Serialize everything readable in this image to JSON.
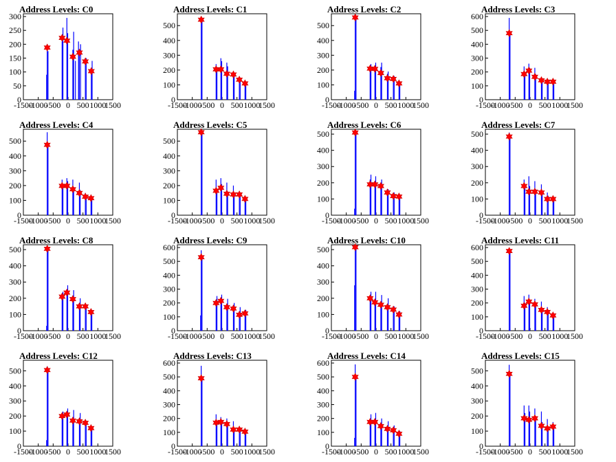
{
  "chart_data": [
    {
      "type": "bar",
      "title": "Address Levels: C0",
      "xlim": [
        -1500,
        1500
      ],
      "ylim": [
        0,
        310
      ],
      "yticks": [
        0,
        50,
        100,
        150,
        200,
        250,
        300
      ],
      "xticks": [
        -1500,
        -1000,
        -500,
        0,
        500,
        1000,
        1500
      ],
      "x": [
        -700,
        -700,
        -720,
        -200,
        -200,
        -40,
        -40,
        160,
        160,
        220,
        350,
        350,
        420,
        580,
        580,
        780,
        780
      ],
      "values": [
        200,
        175,
        90,
        260,
        210,
        240,
        295,
        245,
        180,
        140,
        210,
        180,
        200,
        150,
        140,
        140,
        110
      ],
      "markers": {
        "x": [
          -700,
          -200,
          -40,
          160,
          380,
          580,
          780
        ],
        "y": [
          188,
          223,
          213,
          155,
          170,
          138,
          103
        ]
      }
    },
    {
      "type": "bar",
      "title": "Address Levels: C1",
      "xlim": [
        -1500,
        1500
      ],
      "ylim": [
        0,
        580
      ],
      "yticks": [
        0,
        100,
        200,
        300,
        400,
        500
      ],
      "xticks": [
        -1500,
        -1000,
        -500,
        0,
        500,
        1000,
        1500
      ],
      "x": [
        -700,
        -700,
        -200,
        -200,
        -40,
        -40,
        160,
        160,
        380,
        380,
        580,
        580,
        770,
        770
      ],
      "values": [
        560,
        540,
        240,
        220,
        280,
        260,
        250,
        225,
        190,
        180,
        150,
        140,
        110,
        100
      ],
      "markers": {
        "x": [
          -700,
          -200,
          -40,
          160,
          380,
          580,
          770
        ],
        "y": [
          540,
          205,
          205,
          175,
          170,
          135,
          110
        ]
      }
    },
    {
      "type": "bar",
      "title": "Address Levels: C2",
      "xlim": [
        -1500,
        1500
      ],
      "ylim": [
        0,
        580
      ],
      "yticks": [
        0,
        100,
        200,
        300,
        400,
        500
      ],
      "xticks": [
        -1500,
        -1000,
        -500,
        0,
        500,
        1000,
        1500
      ],
      "x": [
        -700,
        -700,
        -720,
        -200,
        -200,
        -40,
        -40,
        160,
        160,
        380,
        380,
        580,
        580,
        770,
        770
      ],
      "values": [
        570,
        550,
        60,
        240,
        220,
        250,
        230,
        250,
        220,
        190,
        175,
        160,
        140,
        120,
        110
      ],
      "markers": {
        "x": [
          -700,
          -200,
          -40,
          160,
          380,
          580,
          770
        ],
        "y": [
          555,
          210,
          208,
          180,
          145,
          140,
          110
        ]
      }
    },
    {
      "type": "bar",
      "title": "Address Levels: C3",
      "xlim": [
        -1500,
        1500
      ],
      "ylim": [
        0,
        620
      ],
      "yticks": [
        0,
        100,
        200,
        300,
        400,
        500,
        600
      ],
      "xticks": [
        -1500,
        -1000,
        -500,
        0,
        500,
        1000,
        1500
      ],
      "x": [
        -700,
        -700,
        -200,
        -200,
        -40,
        -40,
        160,
        160,
        380,
        380,
        580,
        580,
        770,
        770
      ],
      "values": [
        590,
        480,
        240,
        200,
        260,
        230,
        230,
        185,
        150,
        140,
        145,
        130,
        140,
        120
      ],
      "markers": {
        "x": [
          -700,
          -200,
          -40,
          160,
          380,
          580,
          770
        ],
        "y": [
          480,
          185,
          210,
          165,
          140,
          130,
          130
        ]
      }
    },
    {
      "type": "bar",
      "title": "Address Levels: C4",
      "xlim": [
        -1500,
        1500
      ],
      "ylim": [
        0,
        580
      ],
      "yticks": [
        0,
        100,
        200,
        300,
        400,
        500
      ],
      "xticks": [
        -1500,
        -1000,
        -500,
        0,
        500,
        1000,
        1500
      ],
      "x": [
        -700,
        -700,
        -200,
        -200,
        -40,
        -40,
        160,
        160,
        380,
        380,
        580,
        580,
        770,
        770
      ],
      "values": [
        560,
        470,
        240,
        200,
        250,
        230,
        240,
        190,
        220,
        170,
        150,
        125,
        130,
        110
      ],
      "markers": {
        "x": [
          -700,
          -200,
          -40,
          160,
          380,
          580,
          770
        ],
        "y": [
          475,
          198,
          198,
          175,
          150,
          125,
          115
        ]
      }
    },
    {
      "type": "bar",
      "title": "Address Levels: C5",
      "xlim": [
        -1500,
        1500
      ],
      "ylim": [
        0,
        580
      ],
      "yticks": [
        0,
        100,
        200,
        300,
        400,
        500
      ],
      "xticks": [
        -1500,
        -1000,
        -500,
        0,
        500,
        1000,
        1500
      ],
      "x": [
        -700,
        -700,
        -200,
        -200,
        -40,
        -40,
        160,
        160,
        380,
        380,
        580,
        580,
        770,
        770
      ],
      "values": [
        560,
        550,
        240,
        180,
        250,
        210,
        220,
        160,
        200,
        150,
        150,
        140,
        120,
        110
      ],
      "markers": {
        "x": [
          -700,
          -200,
          -40,
          160,
          380,
          580,
          770
        ],
        "y": [
          560,
          165,
          185,
          145,
          140,
          140,
          110
        ]
      }
    },
    {
      "type": "bar",
      "title": "Address Levels: C6",
      "xlim": [
        -1500,
        1500
      ],
      "ylim": [
        0,
        530
      ],
      "yticks": [
        0,
        100,
        200,
        300,
        400,
        500
      ],
      "xticks": [
        -1500,
        -1000,
        -500,
        0,
        500,
        1000,
        1500
      ],
      "x": [
        -700,
        -700,
        -720,
        -200,
        -200,
        -40,
        -40,
        160,
        160,
        380,
        380,
        580,
        580,
        770,
        770
      ],
      "values": [
        520,
        510,
        40,
        250,
        220,
        240,
        200,
        220,
        180,
        160,
        140,
        140,
        120,
        120,
        110
      ],
      "markers": {
        "x": [
          -700,
          -200,
          -40,
          160,
          380,
          580,
          770
        ],
        "y": [
          510,
          190,
          190,
          180,
          140,
          118,
          115
        ]
      }
    },
    {
      "type": "bar",
      "title": "Address Levels: C7",
      "xlim": [
        -1500,
        1500
      ],
      "ylim": [
        0,
        530
      ],
      "yticks": [
        0,
        100,
        200,
        300,
        400,
        500
      ],
      "xticks": [
        -1500,
        -1000,
        -500,
        0,
        500,
        1000,
        1500
      ],
      "x": [
        -700,
        -700,
        -200,
        -200,
        -40,
        -40,
        160,
        160,
        380,
        380,
        580,
        580,
        770,
        770
      ],
      "values": [
        510,
        490,
        220,
        190,
        240,
        180,
        210,
        160,
        190,
        150,
        140,
        120,
        110,
        100
      ],
      "markers": {
        "x": [
          -700,
          -200,
          -40,
          160,
          380,
          580,
          770
        ],
        "y": [
          485,
          180,
          145,
          145,
          140,
          100,
          100
        ]
      }
    },
    {
      "type": "bar",
      "title": "Address Levels: C8",
      "xlim": [
        -1500,
        1500
      ],
      "ylim": [
        0,
        530
      ],
      "yticks": [
        0,
        100,
        200,
        300,
        400,
        500
      ],
      "xticks": [
        -1500,
        -1000,
        -500,
        0,
        500,
        1000,
        1500
      ],
      "x": [
        -700,
        -700,
        -720,
        -200,
        -200,
        -40,
        -40,
        160,
        160,
        380,
        380,
        580,
        580,
        770,
        770
      ],
      "values": [
        520,
        505,
        30,
        240,
        210,
        280,
        240,
        250,
        190,
        200,
        150,
        160,
        140,
        120,
        110
      ],
      "markers": {
        "x": [
          -700,
          -200,
          -40,
          160,
          380,
          580,
          770
        ],
        "y": [
          505,
          210,
          235,
          195,
          150,
          150,
          115
        ]
      }
    },
    {
      "type": "bar",
      "title": "Address Levels: C9",
      "xlim": [
        -1500,
        1500
      ],
      "ylim": [
        0,
        620
      ],
      "yticks": [
        0,
        100,
        200,
        300,
        400,
        500,
        600
      ],
      "xticks": [
        -1500,
        -1000,
        -500,
        0,
        500,
        1000,
        1500
      ],
      "x": [
        -700,
        -700,
        -720,
        -200,
        -200,
        -40,
        -40,
        160,
        160,
        380,
        380,
        580,
        580,
        770,
        770
      ],
      "values": [
        580,
        530,
        110,
        250,
        210,
        260,
        220,
        230,
        170,
        200,
        160,
        170,
        140,
        150,
        120
      ],
      "markers": {
        "x": [
          -700,
          -200,
          -40,
          160,
          380,
          580,
          770
        ],
        "y": [
          530,
          200,
          215,
          170,
          160,
          115,
          125
        ]
      }
    },
    {
      "type": "bar",
      "title": "Address Levels: C10",
      "xlim": [
        -1500,
        1500
      ],
      "ylim": [
        0,
        530
      ],
      "yticks": [
        0,
        100,
        200,
        300,
        400,
        500
      ],
      "xticks": [
        -1500,
        -1000,
        -500,
        0,
        500,
        1000,
        1500
      ],
      "x": [
        -700,
        -700,
        -720,
        -200,
        -200,
        -40,
        -40,
        160,
        160,
        380,
        380,
        580,
        580,
        770,
        770
      ],
      "values": [
        520,
        510,
        280,
        240,
        200,
        240,
        180,
        220,
        160,
        200,
        140,
        150,
        120,
        120,
        100
      ],
      "markers": {
        "x": [
          -700,
          -200,
          -40,
          160,
          380,
          580,
          770
        ],
        "y": [
          515,
          200,
          175,
          160,
          145,
          130,
          100
        ]
      }
    },
    {
      "type": "bar",
      "title": "Address Levels: C11",
      "xlim": [
        -1500,
        1500
      ],
      "ylim": [
        0,
        620
      ],
      "yticks": [
        0,
        100,
        200,
        300,
        400,
        500,
        600
      ],
      "xticks": [
        -1500,
        -1000,
        -500,
        0,
        500,
        1000,
        1500
      ],
      "x": [
        -700,
        -700,
        -200,
        -200,
        -40,
        -40,
        160,
        160,
        380,
        380,
        580,
        580,
        770,
        770
      ],
      "values": [
        590,
        570,
        250,
        200,
        260,
        220,
        230,
        180,
        210,
        150,
        170,
        140,
        130,
        110
      ],
      "markers": {
        "x": [
          -700,
          -200,
          -40,
          160,
          380,
          580,
          770
        ],
        "y": [
          575,
          180,
          210,
          190,
          150,
          135,
          110
        ]
      }
    },
    {
      "type": "bar",
      "title": "Address Levels: C12",
      "xlim": [
        -1500,
        1500
      ],
      "ylim": [
        0,
        570
      ],
      "yticks": [
        0,
        100,
        200,
        300,
        400,
        500
      ],
      "xticks": [
        -1500,
        -1000,
        -500,
        0,
        500,
        1000,
        1500
      ],
      "x": [
        -700,
        -700,
        -720,
        -200,
        -200,
        -40,
        -40,
        160,
        160,
        380,
        380,
        580,
        580,
        770,
        770
      ],
      "values": [
        530,
        505,
        40,
        230,
        200,
        250,
        210,
        240,
        180,
        220,
        170,
        160,
        140,
        130,
        110
      ],
      "markers": {
        "x": [
          -700,
          -200,
          -40,
          160,
          380,
          580,
          770
        ],
        "y": [
          505,
          200,
          210,
          170,
          165,
          155,
          120
        ]
      }
    },
    {
      "type": "bar",
      "title": "Address Levels: C13",
      "xlim": [
        -1500,
        1500
      ],
      "ylim": [
        0,
        620
      ],
      "yticks": [
        0,
        100,
        200,
        300,
        400,
        500,
        600
      ],
      "xticks": [
        -1500,
        -1000,
        -500,
        0,
        500,
        1000,
        1500
      ],
      "x": [
        -700,
        -700,
        -200,
        -200,
        -40,
        -40,
        160,
        160,
        380,
        380,
        580,
        580,
        770,
        770
      ],
      "values": [
        580,
        490,
        230,
        180,
        210,
        170,
        200,
        150,
        180,
        130,
        140,
        120,
        120,
        100
      ],
      "markers": {
        "x": [
          -700,
          -200,
          -40,
          160,
          380,
          580,
          770
        ],
        "y": [
          490,
          170,
          175,
          160,
          120,
          120,
          105
        ]
      }
    },
    {
      "type": "bar",
      "title": "Address Levels: C14",
      "xlim": [
        -1500,
        1500
      ],
      "ylim": [
        0,
        620
      ],
      "yticks": [
        0,
        100,
        200,
        300,
        400,
        500,
        600
      ],
      "xticks": [
        -1500,
        -1000,
        -500,
        0,
        500,
        1000,
        1500
      ],
      "x": [
        -700,
        -700,
        -720,
        -200,
        -200,
        -40,
        -40,
        160,
        160,
        380,
        380,
        580,
        580,
        770,
        770
      ],
      "values": [
        590,
        500,
        60,
        230,
        180,
        240,
        190,
        200,
        160,
        180,
        140,
        150,
        130,
        110,
        90
      ],
      "markers": {
        "x": [
          -700,
          -200,
          -40,
          160,
          380,
          580,
          770
        ],
        "y": [
          500,
          175,
          175,
          145,
          125,
          115,
          90
        ]
      }
    },
    {
      "type": "bar",
      "title": "Address Levels: C15",
      "xlim": [
        -1500,
        1500
      ],
      "ylim": [
        0,
        570
      ],
      "yticks": [
        0,
        100,
        200,
        300,
        400,
        500
      ],
      "xticks": [
        -1500,
        -1000,
        -500,
        0,
        500,
        1000,
        1500
      ],
      "x": [
        -700,
        -700,
        -200,
        -200,
        -40,
        -40,
        160,
        160,
        380,
        380,
        580,
        580,
        770,
        770
      ],
      "values": [
        540,
        480,
        270,
        220,
        270,
        230,
        250,
        200,
        230,
        160,
        180,
        130,
        160,
        140
      ],
      "markers": {
        "x": [
          -700,
          -200,
          -40,
          160,
          380,
          580,
          770
        ],
        "y": [
          480,
          185,
          175,
          185,
          135,
          118,
          130
        ]
      }
    }
  ],
  "colors": {
    "bars": "#0000ff",
    "markers": "#ff0000",
    "axes": "#000000"
  }
}
